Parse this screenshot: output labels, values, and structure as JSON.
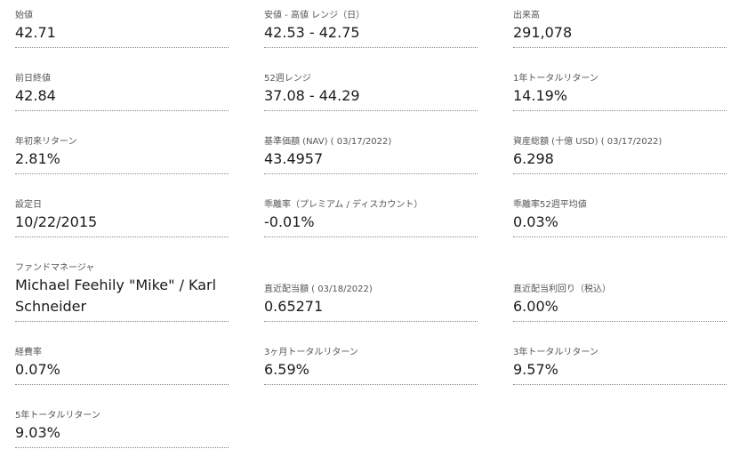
{
  "stats": [
    {
      "label": "始値",
      "value": "42.71"
    },
    {
      "label": "安値 - 高値 レンジ（日）",
      "value": "42.53 - 42.75"
    },
    {
      "label": "出来高",
      "value": "291,078"
    },
    {
      "label": "前日終値",
      "value": "42.84"
    },
    {
      "label": "52週レンジ",
      "value": "37.08 - 44.29"
    },
    {
      "label": "1年トータルリターン",
      "value": "14.19%"
    },
    {
      "label": "年初来リターン",
      "value": "2.81%"
    },
    {
      "label": "基準価額 (NAV) ( 03/17/2022)",
      "value": "43.4957"
    },
    {
      "label": "資産総額 (十億 USD) ( 03/17/2022)",
      "value": "6.298"
    },
    {
      "label": "設定日",
      "value": "10/22/2015"
    },
    {
      "label": "乖離率（プレミアム / ディスカウント）",
      "value": "-0.01%"
    },
    {
      "label": "乖離率52週平均値",
      "value": "0.03%"
    },
    {
      "label": "ファンドマネージャ",
      "value": "Michael Feehily \"Mike\" / Karl Schneider"
    },
    {
      "label": "直近配当額 ( 03/18/2022)",
      "value": "0.65271"
    },
    {
      "label": "直近配当利回り（税込）",
      "value": "6.00%"
    },
    {
      "label": "経費率",
      "value": "0.07%"
    },
    {
      "label": "3ヶ月トータルリターン",
      "value": "6.59%"
    },
    {
      "label": "3年トータルリターン",
      "value": "9.57%"
    },
    {
      "label": "5年トータルリターン",
      "value": "9.03%"
    }
  ]
}
